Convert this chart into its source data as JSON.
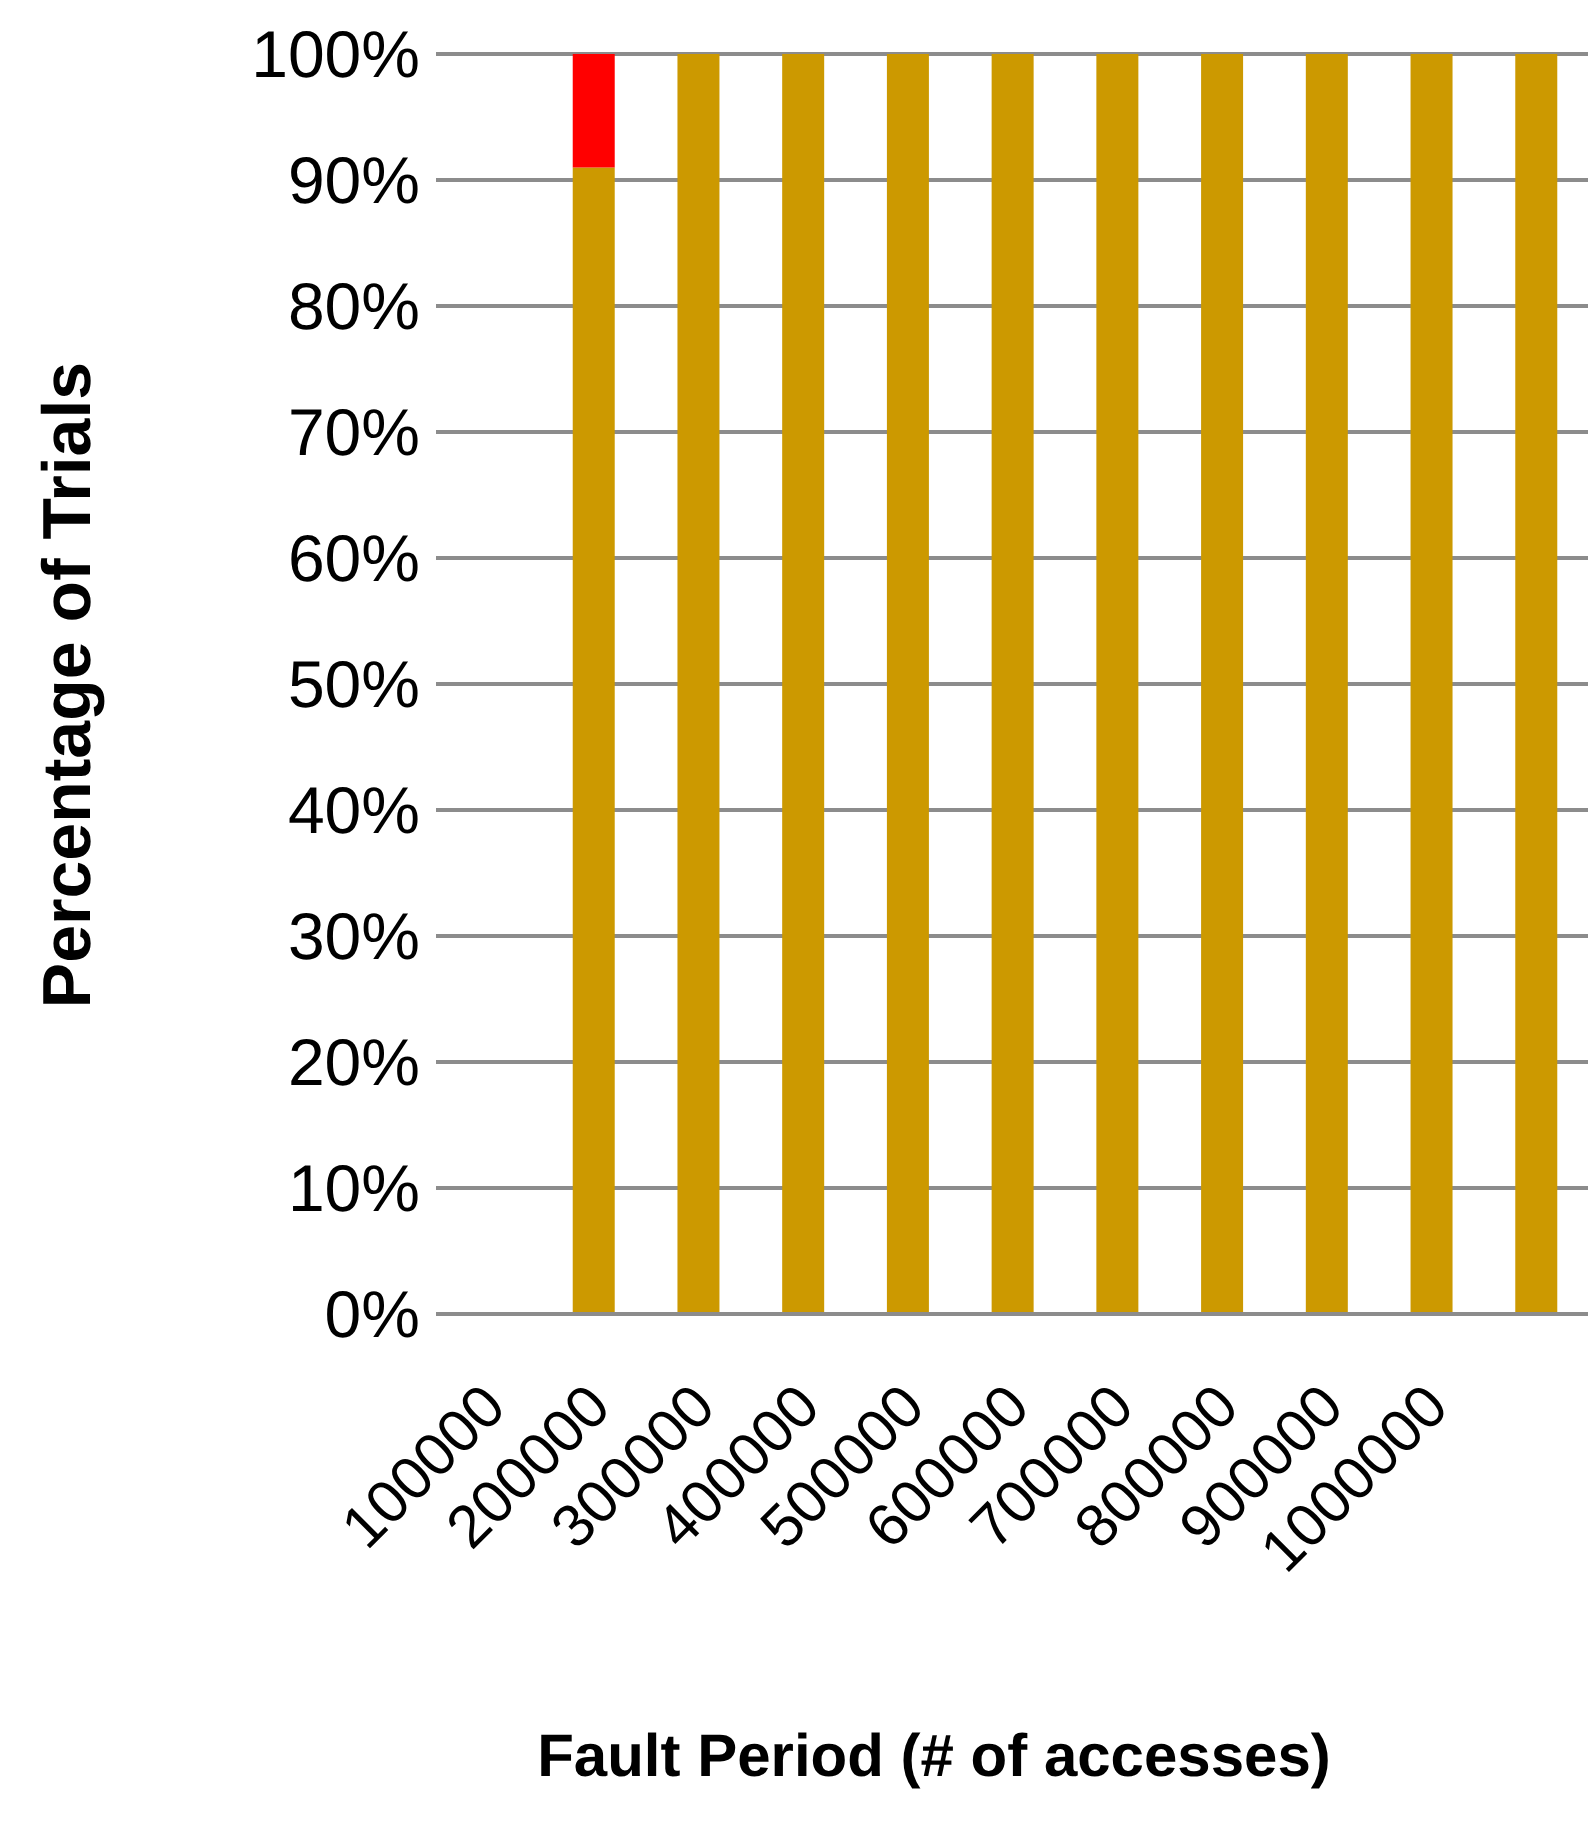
{
  "chart_data": {
    "type": "bar",
    "stacked": true,
    "xlabel": "Fault Period (# of accesses)",
    "ylabel": "Percentage of Trials",
    "categories": [
      "100000",
      "200000",
      "300000",
      "400000",
      "500000",
      "600000",
      "700000",
      "800000",
      "900000",
      "1000000",
      null
    ],
    "series": [
      {
        "color": "#cc9900",
        "values": [
          null,
          91,
          100,
          100,
          100,
          100,
          100,
          100,
          100,
          100,
          100
        ]
      },
      {
        "color": "#ff0000",
        "values": [
          null,
          9,
          0,
          0,
          0,
          0,
          0,
          0,
          0,
          0,
          0
        ]
      }
    ],
    "ylim": [
      0,
      100
    ],
    "yticks": [
      {
        "value": 0,
        "label": "0%"
      },
      {
        "value": 10,
        "label": "10%"
      },
      {
        "value": 20,
        "label": "20%"
      },
      {
        "value": 30,
        "label": "30%"
      },
      {
        "value": 40,
        "label": "40%"
      },
      {
        "value": 50,
        "label": "50%"
      },
      {
        "value": 60,
        "label": "60%"
      },
      {
        "value": 70,
        "label": "70%"
      },
      {
        "value": 80,
        "label": "80%"
      },
      {
        "value": 90,
        "label": "90%"
      },
      {
        "value": 100,
        "label": "100%"
      }
    ],
    "grid": "y",
    "legend": false
  }
}
